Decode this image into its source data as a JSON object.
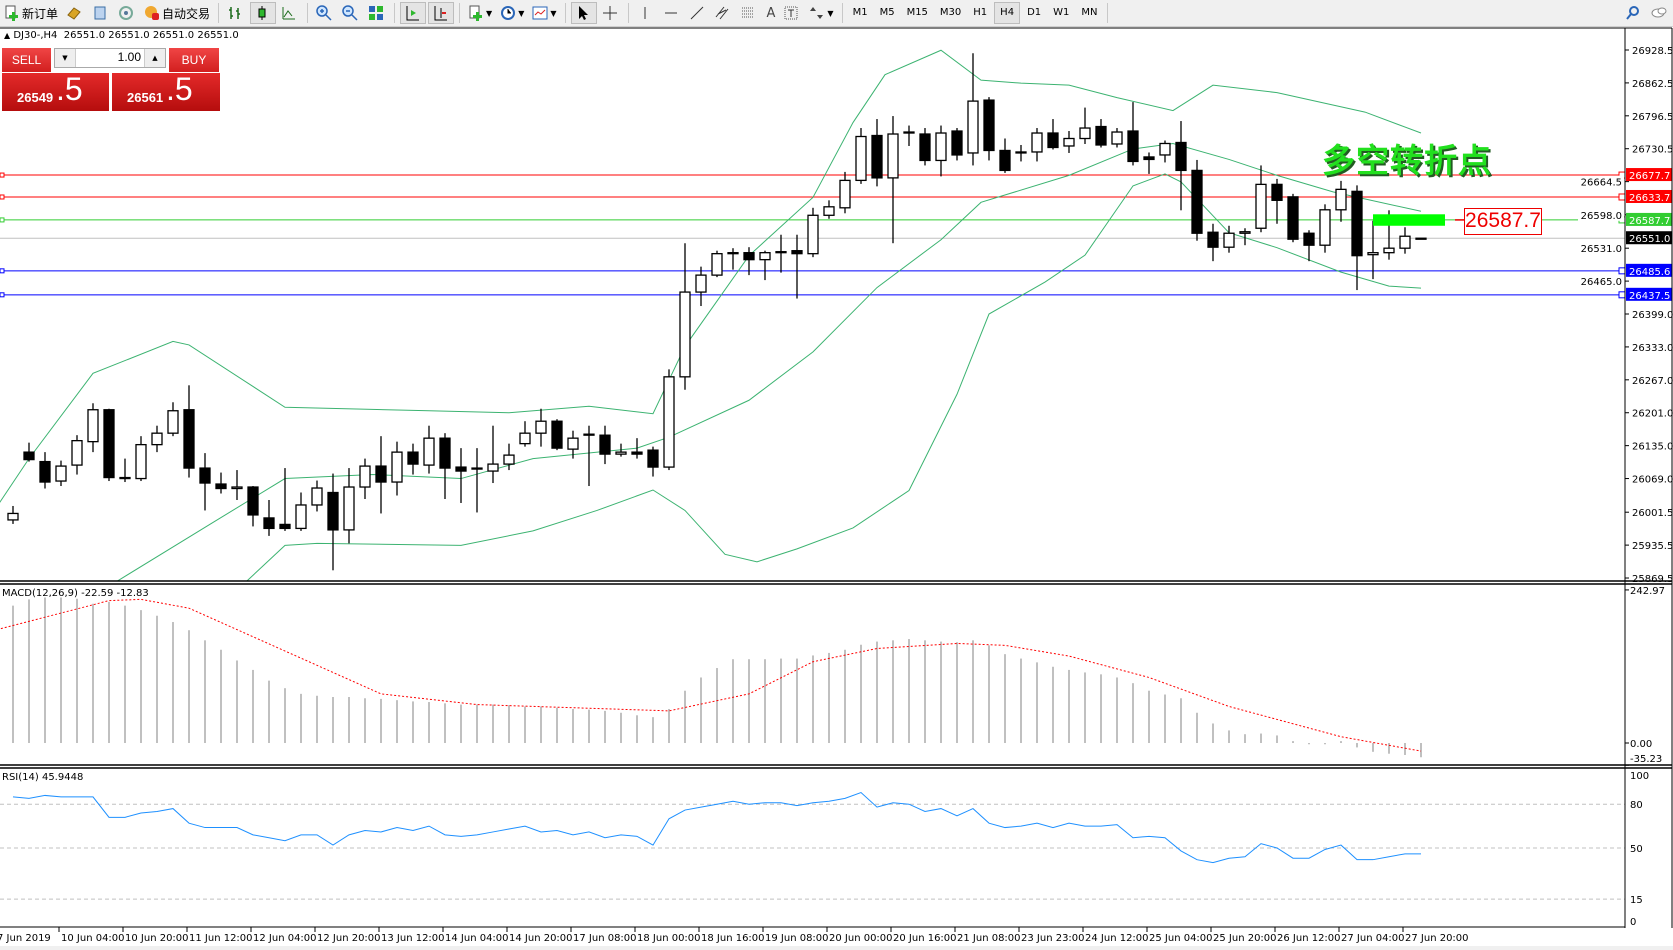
{
  "toolbar": {
    "new_order": "新订单",
    "auto_trade": "自动交易",
    "timeframes": [
      "M1",
      "M5",
      "M15",
      "M30",
      "H1",
      "H4",
      "D1",
      "W1",
      "MN"
    ],
    "active_timeframe": "H4",
    "text_tool": "A"
  },
  "chart_header": {
    "symbol": "DJ30-,H4",
    "ohlc": "26551.0 26551.0 26551.0 26551.0"
  },
  "trade_panel": {
    "sell_label": "SELL",
    "buy_label": "BUY",
    "lot": "1.00",
    "sell_price": "26549",
    "sell_price_frac": ".5",
    "buy_price": "26561",
    "buy_price_frac": ".5"
  },
  "annotation": {
    "text": "多空转折点",
    "price_label": "26587.7",
    "color": "#22e01e"
  },
  "chart_data": [
    {
      "type": "candlestick",
      "panel": "main",
      "ylim": [
        25869.5,
        26928.5
      ],
      "y_ticks": [
        "26928.5",
        "26862.5",
        "26796.5",
        "26730.5",
        "26664.5",
        "26598.0",
        "26531.0",
        "26465.0",
        "26399.0",
        "26333.0",
        "26267.0",
        "26201.0",
        "26135.0",
        "26069.0",
        "26001.5",
        "25935.5",
        "25869.5"
      ],
      "x_labels": {
        "first": "7 Jun 2019",
        "every4": [
          "10 Jun 04:00",
          "10 Jun 20:00",
          "11 Jun 12:00",
          "12 Jun 04:00",
          "12 Jun 20:00",
          "13 Jun 12:00",
          "14 Jun 04:00",
          "14 Jun 20:00",
          "17 Jun 08:00",
          "18 Jun 00:00",
          "18 Jun 16:00",
          "19 Jun 08:00",
          "20 Jun 00:00",
          "20 Jun 16:00",
          "21 Jun 08:00",
          "23 Jun 23:00",
          "24 Jun 12:00",
          "25 Jun 04:00",
          "25 Jun 20:00",
          "26 Jun 12:00",
          "27 Jun 04:00",
          "27 Jun 20:00"
        ]
      },
      "candles_ohlc": [
        [
          25986,
          26014,
          25978,
          25999
        ],
        [
          26122,
          26141,
          26103,
          26107
        ],
        [
          26103,
          26122,
          26049,
          26062
        ],
        [
          26064,
          26105,
          26054,
          26094
        ],
        [
          26096,
          26156,
          26077,
          26145
        ],
        [
          26143,
          26220,
          26122,
          26207
        ],
        [
          26207,
          26209,
          26064,
          26071
        ],
        [
          26071,
          26109,
          26062,
          26069
        ],
        [
          26069,
          26154,
          26064,
          26137
        ],
        [
          26137,
          26175,
          26122,
          26160
        ],
        [
          26160,
          26222,
          26154,
          26205
        ],
        [
          26207,
          26256,
          26071,
          26090
        ],
        [
          26090,
          26120,
          26005,
          26060
        ],
        [
          26058,
          26081,
          26039,
          26049
        ],
        [
          26049,
          26086,
          26026,
          26052
        ],
        [
          26052,
          26054,
          25973,
          25996
        ],
        [
          25990,
          26026,
          25954,
          25969
        ],
        [
          25977,
          26090,
          25964,
          25969
        ],
        [
          25969,
          26041,
          25964,
          26016
        ],
        [
          26016,
          26065,
          26003,
          26050
        ],
        [
          26041,
          26079,
          25885,
          25966
        ],
        [
          25966,
          26090,
          25939,
          26052
        ],
        [
          26052,
          26109,
          26028,
          26094
        ],
        [
          26094,
          26154,
          25999,
          26062
        ],
        [
          26062,
          26143,
          26035,
          26122
        ],
        [
          26122,
          26139,
          26077,
          26098
        ],
        [
          26096,
          26175,
          26079,
          26150
        ],
        [
          26150,
          26160,
          26028,
          26090
        ],
        [
          26092,
          26130,
          26020,
          26084
        ],
        [
          26088,
          26130,
          26001,
          26090
        ],
        [
          26084,
          26175,
          26060,
          26098
        ],
        [
          26098,
          26139,
          26086,
          26116
        ],
        [
          26139,
          26184,
          26133,
          26160
        ],
        [
          26160,
          26209,
          26133,
          26184
        ],
        [
          26184,
          26188,
          26126,
          26130
        ],
        [
          26128,
          26165,
          26109,
          26150
        ],
        [
          26156,
          26175,
          26054,
          26158
        ],
        [
          26156,
          26175,
          26098,
          26118
        ],
        [
          26118,
          26139,
          26113,
          26122
        ],
        [
          26122,
          26150,
          26109,
          26118
        ],
        [
          26126,
          26133,
          26073,
          26092
        ],
        [
          26092,
          26288,
          26086,
          26273
        ],
        [
          26273,
          26541,
          26247,
          26443
        ],
        [
          26443,
          26494,
          26415,
          26477
        ],
        [
          26477,
          26526,
          26473,
          26520
        ],
        [
          26520,
          26531,
          26488,
          26522
        ],
        [
          26522,
          26533,
          26477,
          26508
        ],
        [
          26508,
          26526,
          26467,
          26522
        ],
        [
          26522,
          26558,
          26482,
          26524
        ],
        [
          26526,
          26558,
          26430,
          26520
        ],
        [
          26520,
          26612,
          26513,
          26597
        ],
        [
          26597,
          26627,
          26590,
          26614
        ],
        [
          26612,
          26684,
          26601,
          26667
        ],
        [
          26667,
          26772,
          26660,
          26755
        ],
        [
          26757,
          26790,
          26655,
          26672
        ],
        [
          26672,
          26796,
          26541,
          26760
        ],
        [
          26762,
          26777,
          26736,
          26764
        ],
        [
          26760,
          26772,
          26697,
          26707
        ],
        [
          26707,
          26777,
          26675,
          26762
        ],
        [
          26766,
          26772,
          26707,
          26718
        ],
        [
          26722,
          26922,
          26697,
          26826
        ],
        [
          26828,
          26834,
          26707,
          26727
        ],
        [
          26727,
          26751,
          26682,
          26687
        ],
        [
          26722,
          26738,
          26705,
          26724
        ],
        [
          26724,
          26772,
          26705,
          26762
        ],
        [
          26762,
          26790,
          26729,
          26733
        ],
        [
          26736,
          26766,
          26722,
          26751
        ],
        [
          26751,
          26813,
          26740,
          26772
        ],
        [
          26775,
          26790,
          26733,
          26738
        ],
        [
          26740,
          26772,
          26733,
          26764
        ],
        [
          26766,
          26824,
          26697,
          26705
        ],
        [
          26714,
          26723,
          26680,
          26709
        ],
        [
          26718,
          26747,
          26703,
          26741
        ],
        [
          26743,
          26786,
          26607,
          26687
        ],
        [
          26687,
          26708,
          26546,
          26561
        ],
        [
          26563,
          26580,
          26505,
          26533
        ],
        [
          26533,
          26576,
          26522,
          26561
        ],
        [
          26561,
          26571,
          26537,
          26564
        ],
        [
          26571,
          26697,
          26563,
          26659
        ],
        [
          26659,
          26670,
          26580,
          26627
        ],
        [
          26634,
          26640,
          26543,
          26549
        ],
        [
          26561,
          26567,
          26505,
          26537
        ],
        [
          26537,
          26619,
          26522,
          26608
        ],
        [
          26608,
          26666,
          26584,
          26649
        ],
        [
          26645,
          26657,
          26447,
          26516
        ],
        [
          26518,
          26586,
          26469,
          26522
        ],
        [
          26522,
          26607,
          26508,
          26531
        ],
        [
          26531,
          26573,
          26520,
          26555
        ],
        [
          26551,
          26551,
          26551,
          26551
        ]
      ],
      "bollinger": {
        "color": "#3cb371",
        "upper": [
          [
            -1,
            26013
          ],
          [
            1,
            26109
          ],
          [
            5,
            26280
          ],
          [
            10,
            26344
          ],
          [
            11,
            26337
          ],
          [
            17,
            26212
          ],
          [
            26,
            26205
          ],
          [
            31,
            26201
          ],
          [
            36,
            26214
          ],
          [
            40,
            26199
          ],
          [
            42,
            26334
          ],
          [
            46,
            26516
          ],
          [
            50,
            26633
          ],
          [
            52.5,
            26783
          ],
          [
            54.5,
            26879
          ],
          [
            58,
            26928
          ],
          [
            60.5,
            26868
          ],
          [
            63,
            26862
          ],
          [
            66,
            26858
          ],
          [
            69,
            26833
          ],
          [
            72.5,
            26807
          ],
          [
            75,
            26858
          ],
          [
            79,
            26843
          ],
          [
            84.5,
            26804
          ],
          [
            88,
            26762
          ]
        ],
        "middle": [
          [
            6.5,
            25863
          ],
          [
            12.5,
            25981
          ],
          [
            17,
            26069
          ],
          [
            22.5,
            26077
          ],
          [
            28,
            26069
          ],
          [
            32.5,
            26109
          ],
          [
            39,
            26130
          ],
          [
            41,
            26152
          ],
          [
            46,
            26226
          ],
          [
            50,
            26323
          ],
          [
            54,
            26452
          ],
          [
            58,
            26548
          ],
          [
            60.5,
            26623
          ],
          [
            66,
            26677
          ],
          [
            70,
            26730
          ],
          [
            72.5,
            26741
          ],
          [
            76,
            26709
          ],
          [
            79,
            26677
          ],
          [
            82.5,
            26644
          ],
          [
            88,
            26605
          ]
        ],
        "lower": [
          [
            14.5,
            25860
          ],
          [
            17,
            25935
          ],
          [
            19,
            25939
          ],
          [
            28,
            25935
          ],
          [
            32.5,
            25964
          ],
          [
            36.5,
            26005
          ],
          [
            40,
            26046
          ],
          [
            42,
            26005
          ],
          [
            44.5,
            25917
          ],
          [
            46.5,
            25902
          ],
          [
            49,
            25928
          ],
          [
            52.5,
            25970
          ],
          [
            56,
            26045
          ],
          [
            59,
            26238
          ],
          [
            61,
            26399
          ],
          [
            64.5,
            26463
          ],
          [
            67,
            26517
          ],
          [
            70,
            26656
          ],
          [
            72,
            26680
          ],
          [
            73,
            26664
          ],
          [
            76,
            26562
          ],
          [
            79,
            26532
          ],
          [
            83,
            26483
          ],
          [
            86,
            26455
          ],
          [
            88,
            26451
          ]
        ]
      },
      "hlines": [
        {
          "price": 26677.7,
          "label": "26677.7",
          "color": "#ff0000"
        },
        {
          "price": 26633.7,
          "label": "26633.7",
          "color": "#ff0000"
        },
        {
          "price": 26587.7,
          "label": "26587.7",
          "color": "#32cd32"
        },
        {
          "price": 26551.0,
          "label": "26551.0",
          "color": "#c0c0c0",
          "label_bg": "#000000"
        },
        {
          "price": 26485.6,
          "label": "26485.6",
          "color": "#0000ff"
        },
        {
          "price": 26437.5,
          "label": "26437.5",
          "color": "#0000ff"
        }
      ],
      "zone": {
        "from_candle": 85,
        "to_candle": 89.5,
        "low": 26576,
        "high": 26599,
        "color": "#00ff00"
      }
    },
    {
      "type": "bar",
      "panel": "macd",
      "title": "MACD(12,26,9) -22.59 -12.83",
      "ylim": [
        -35.23,
        242.97
      ],
      "y_ticks": [
        "242.97",
        "0.00",
        "-35.23"
      ],
      "histogram": [
        218,
        228,
        231,
        231,
        229,
        221,
        224,
        218,
        211,
        202,
        192,
        179,
        163,
        148,
        131,
        116,
        99,
        87,
        78,
        75,
        73,
        73,
        71,
        70,
        68,
        66,
        65,
        63,
        61,
        61,
        61,
        60,
        58,
        58,
        56,
        54,
        53,
        51,
        48,
        44,
        41,
        54,
        83,
        104,
        119,
        133,
        133,
        133,
        134,
        134,
        139,
        143,
        148,
        156,
        161,
        163,
        165,
        163,
        161,
        160,
        163,
        155,
        141,
        134,
        128,
        121,
        116,
        112,
        109,
        104,
        95,
        83,
        77,
        71,
        48,
        31,
        20,
        14,
        15,
        12,
        3,
        -2,
        -2,
        3,
        -7,
        -14,
        -17,
        -19,
        -22.59
      ],
      "signal": [
        [
          -1,
          180
        ],
        [
          6,
          226
        ],
        [
          8,
          228
        ],
        [
          11,
          214
        ],
        [
          17,
          146
        ],
        [
          23,
          78
        ],
        [
          29,
          61
        ],
        [
          41,
          51
        ],
        [
          46,
          78
        ],
        [
          50,
          129
        ],
        [
          54,
          150
        ],
        [
          59,
          158
        ],
        [
          62,
          155
        ],
        [
          66,
          138
        ],
        [
          71,
          104
        ],
        [
          76,
          58
        ],
        [
          83,
          10
        ],
        [
          88,
          -12.83
        ]
      ],
      "histogram_color": "#c0c0c0",
      "signal_color": "#ff0000"
    },
    {
      "type": "line",
      "panel": "rsi",
      "title": "RSI(14) 45.9448",
      "ylim": [
        0,
        100
      ],
      "y_ticks": [
        "100",
        "80",
        "50",
        "15",
        "0"
      ],
      "levels": [
        80,
        50,
        15
      ],
      "values": [
        85,
        84,
        86,
        85,
        85,
        85,
        71,
        71,
        74,
        75,
        77,
        67,
        64,
        64,
        64,
        59,
        57,
        55,
        59,
        59,
        52,
        59,
        62,
        61,
        64,
        62,
        65,
        59,
        58,
        59,
        61,
        63,
        65,
        61,
        62,
        59,
        61,
        57,
        59,
        58,
        52,
        70,
        76,
        78,
        80,
        82,
        80,
        81,
        81,
        79,
        81,
        82,
        84,
        88,
        78,
        81,
        80,
        75,
        77,
        72,
        77,
        67,
        64,
        65,
        67,
        64,
        67,
        65,
        65,
        66,
        57,
        58,
        57,
        48,
        42,
        40,
        43,
        44,
        53,
        50,
        43,
        43,
        49,
        52,
        42,
        42,
        44,
        46,
        45.9448
      ],
      "color": "#1e90ff"
    }
  ]
}
